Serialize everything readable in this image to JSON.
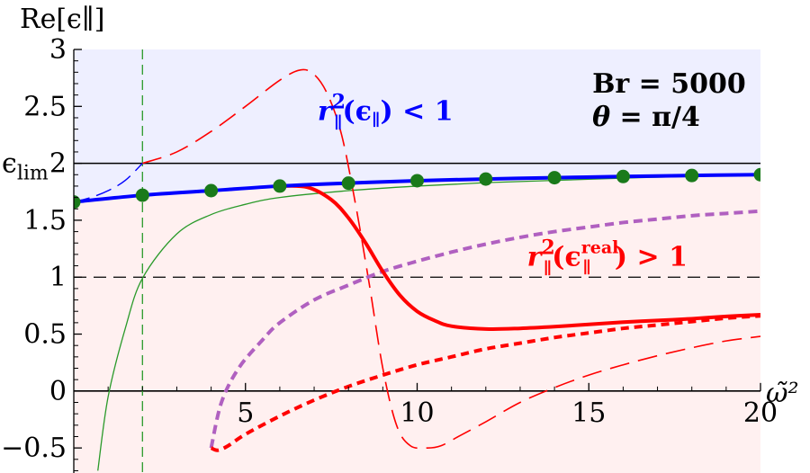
{
  "chart_data": {
    "type": "line",
    "xlabel": "ω̃²",
    "ylabel": "Re[ϵ∥]",
    "xlim": [
      0,
      20
    ],
    "ylim": [
      -0.72,
      3.0
    ],
    "x_ticks": [
      5,
      10,
      15,
      20
    ],
    "y_ticks": [
      3,
      2.5,
      2,
      1.5,
      1,
      0.5,
      0,
      -0.5
    ],
    "x_tick_labels": [
      "5",
      "10",
      "15",
      "20"
    ],
    "y_tick_labels": [
      "3",
      "2.5",
      "2",
      "1.5",
      "1",
      "0.5",
      "0",
      "−0.5"
    ],
    "y_special_label": {
      "base": "ϵ",
      "sub": "lim",
      "value": 2
    },
    "reference_lines": [
      {
        "axis": "y",
        "value": 2,
        "style": "solid",
        "color": "#000000"
      },
      {
        "axis": "y",
        "value": 1,
        "style": "dashed",
        "color": "#000000"
      },
      {
        "axis": "y",
        "value": 0,
        "style": "solid",
        "color": "#000000"
      },
      {
        "axis": "x",
        "value": 2,
        "style": "dashed",
        "color": "#2a9a2a"
      }
    ],
    "regions": [
      {
        "where": "above_boundary",
        "color": "#eeefff"
      },
      {
        "where": "below_boundary",
        "color": "#fff0f0"
      }
    ],
    "series": [
      {
        "style": "blue-thick-solid",
        "color": "#0000ff",
        "x": [
          0,
          2,
          4,
          6,
          8,
          10,
          12,
          14,
          16,
          18,
          20
        ],
        "y": [
          1.66,
          1.72,
          1.76,
          1.8,
          1.826,
          1.847,
          1.862,
          1.874,
          1.884,
          1.893,
          1.9
        ]
      },
      {
        "style": "blue-thin-dashed",
        "color": "#0000ff",
        "x": [
          0,
          0.5,
          1.0,
          1.5,
          2.0
        ],
        "y": [
          1.66,
          1.7,
          1.76,
          1.85,
          2.0
        ]
      },
      {
        "style": "green-dots",
        "color": "#1a7a1a",
        "x": [
          0,
          2,
          4,
          6,
          8,
          10,
          12,
          14,
          16,
          18,
          20
        ],
        "y": [
          1.66,
          1.72,
          1.76,
          1.8,
          1.826,
          1.847,
          1.862,
          1.874,
          1.884,
          1.893,
          1.9
        ]
      },
      {
        "style": "green-thin-solid",
        "color": "#2a9a2a",
        "x": [
          0.7,
          1.0,
          1.5,
          2.0,
          3.0,
          4.0,
          5.0,
          6.0,
          8.0,
          10.0,
          12.0,
          14.0,
          16.0,
          18.0,
          20.0
        ],
        "y": [
          -0.7,
          -0.05,
          0.55,
          0.99,
          1.38,
          1.55,
          1.64,
          1.7,
          1.76,
          1.8,
          1.83,
          1.85,
          1.87,
          1.885,
          1.9
        ]
      },
      {
        "style": "red-thin-dashed",
        "color": "#ff0000",
        "x": [
          2.0,
          3.0,
          4.0,
          5.0,
          6.0,
          6.6,
          7.0,
          7.4,
          7.8,
          8.2,
          8.6,
          9.0,
          9.4,
          9.8,
          10.3,
          10.7,
          11.2,
          12.0,
          13.0,
          14.0,
          15.0,
          16.0,
          17.0,
          18.0,
          19.0,
          20.0
        ],
        "y": [
          2.0,
          2.1,
          2.28,
          2.5,
          2.73,
          2.82,
          2.78,
          2.6,
          2.25,
          1.65,
          0.95,
          0.2,
          -0.3,
          -0.48,
          -0.5,
          -0.48,
          -0.4,
          -0.27,
          -0.1,
          0.03,
          0.14,
          0.23,
          0.31,
          0.38,
          0.44,
          0.48
        ]
      },
      {
        "style": "red-thick-solid",
        "color": "#ff0000",
        "x": [
          6.0,
          6.8,
          7.5,
          8.0,
          8.5,
          9.0,
          9.5,
          10.0,
          10.5,
          11.0,
          12.0,
          13.0,
          14.0,
          15.0,
          16.0,
          17.0,
          18.0,
          19.0,
          20.0
        ],
        "y": [
          1.8,
          1.79,
          1.68,
          1.52,
          1.3,
          1.05,
          0.84,
          0.7,
          0.62,
          0.57,
          0.545,
          0.55,
          0.565,
          0.585,
          0.605,
          0.62,
          0.635,
          0.655,
          0.67
        ]
      },
      {
        "style": "red-thick-dashed",
        "color": "#ff0000",
        "x": [
          4.0,
          4.2,
          4.5,
          5.0,
          6.0,
          7.0,
          8.0,
          9.0,
          10.0,
          11.0,
          12.0,
          13.0,
          14.0,
          15.0,
          16.0,
          17.0,
          18.0,
          19.0,
          20.0
        ],
        "y": [
          -0.5,
          -0.52,
          -0.48,
          -0.38,
          -0.22,
          -0.08,
          0.04,
          0.14,
          0.23,
          0.3,
          0.37,
          0.42,
          0.47,
          0.51,
          0.55,
          0.58,
          0.61,
          0.64,
          0.66
        ]
      },
      {
        "style": "purple-dashed",
        "color": "#b060c0",
        "x": [
          4.0,
          4.3,
          4.8,
          5.5,
          6.0,
          7.0,
          8.0,
          9.0,
          10.0,
          11.0,
          12.0,
          13.0,
          14.0,
          15.0,
          16.0,
          17.0,
          18.0,
          19.0,
          20.0
        ],
        "y": [
          -0.5,
          -0.1,
          0.2,
          0.45,
          0.6,
          0.8,
          0.93,
          1.05,
          1.14,
          1.22,
          1.29,
          1.35,
          1.4,
          1.44,
          1.48,
          1.51,
          1.54,
          1.56,
          1.58
        ]
      }
    ],
    "annotations": [
      {
        "id": "blue",
        "color": "#0000ff",
        "base": "r",
        "sub": "∥",
        "sup": "2",
        "arg_base": "ϵ",
        "arg_sub": "∥",
        "arg_sup": "",
        "relation": "< 1",
        "x": 7.1,
        "y": 2.38
      },
      {
        "id": "red",
        "color": "#ff0000",
        "base": "r",
        "sub": "∥",
        "sup": "2",
        "arg_base": "ϵ",
        "arg_sub": "∥",
        "arg_sup": "real",
        "relation": "> 1",
        "x": 13.2,
        "y": 1.1
      },
      {
        "id": "br",
        "color": "#000000",
        "text": "Br = 5000",
        "x": 15.1,
        "y": 2.62
      },
      {
        "id": "theta",
        "color": "#000000",
        "text": "θ = π/4",
        "x": 15.1,
        "y": 2.33
      }
    ]
  }
}
